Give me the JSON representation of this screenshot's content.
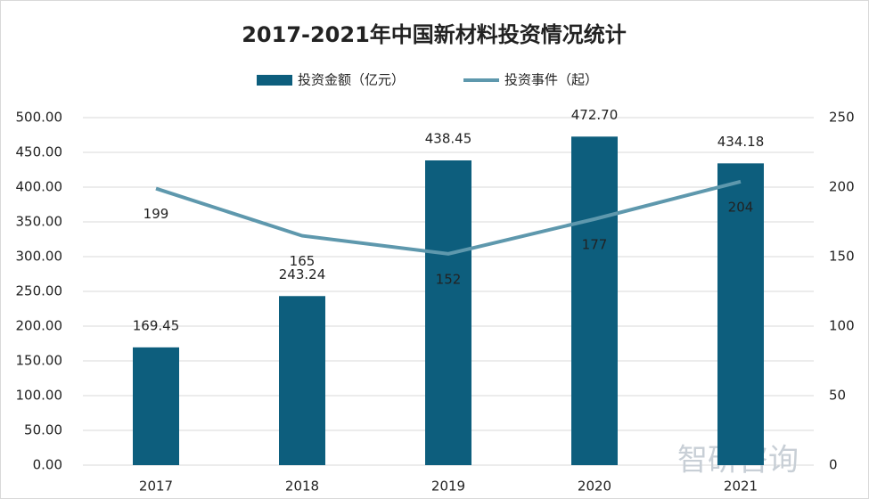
{
  "chart_data": {
    "type": "bar_line",
    "title": "2017-2021年中国新材料投资情况统计",
    "categories": [
      "2017",
      "2018",
      "2019",
      "2020",
      "2021"
    ],
    "series": [
      {
        "name": "投资金额（亿元）",
        "type": "bar",
        "color": "#0d5e7d",
        "values": [
          169.45,
          243.24,
          438.45,
          472.7,
          434.18
        ],
        "value_labels": [
          "169.45",
          "243.24",
          "438.45",
          "472.70",
          "434.18"
        ]
      },
      {
        "name": "投资事件（起）",
        "type": "line",
        "axis": "y2",
        "color": "#5e98ad",
        "values": [
          199,
          165,
          152,
          177,
          204
        ]
      }
    ],
    "ylim": [
      0,
      500
    ],
    "yticks": [
      {
        "value": 0,
        "label": "0.00"
      },
      {
        "value": 50,
        "label": "50.00"
      },
      {
        "value": 100,
        "label": "100.00"
      },
      {
        "value": 150,
        "label": "150.00"
      },
      {
        "value": 200,
        "label": "200.00"
      },
      {
        "value": 250,
        "label": "250.00"
      },
      {
        "value": 300,
        "label": "300.00"
      },
      {
        "value": 350,
        "label": "350.00"
      },
      {
        "value": 400,
        "label": "400.00"
      },
      {
        "value": 450,
        "label": "450.00"
      },
      {
        "value": 500,
        "label": "500.00"
      }
    ],
    "y2lim": [
      0,
      250
    ],
    "y2ticks": [
      0,
      50,
      100,
      150,
      200,
      250
    ],
    "grid": true,
    "legend": "top",
    "watermark": "智研咨询"
  }
}
